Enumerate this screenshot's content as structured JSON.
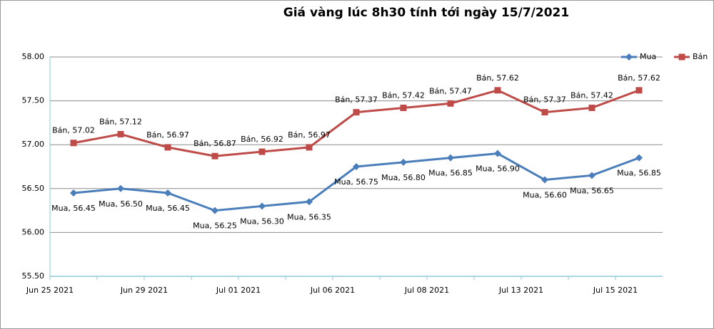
{
  "chart_data": {
    "type": "line",
    "title": "Giá vàng lúc 8h30 tính tới ngày 15/7/2021",
    "categories": [
      "Jun 25 2021",
      null,
      "Jun 29 2021",
      null,
      "Jul 01 2021",
      null,
      "Jul 06 2021",
      null,
      "Jul 08 2021",
      null,
      "Jul 13 2021",
      null,
      "Jul 15 2021"
    ],
    "series": [
      {
        "name": "Mua",
        "color": "#4a7ebb",
        "marker": "diamond",
        "values": [
          56.45,
          56.5,
          56.45,
          56.25,
          56.3,
          56.35,
          56.75,
          56.8,
          56.85,
          56.9,
          56.6,
          56.65,
          56.85
        ],
        "value_labels": [
          "Mua, 56.45",
          "Mua, 56.50",
          "Mua, 56.45",
          "Mua, 56.25",
          "Mua, 56.30",
          "Mua, 56.35",
          "Mua, 56.75",
          "Mua, 56.80",
          "Mua, 56.85",
          "Mua, 56.90",
          "Mua, 56.60",
          "Mua, 56.65",
          "Mua, 56.85"
        ]
      },
      {
        "name": "Bán",
        "color": "#be4b48",
        "marker": "square",
        "values": [
          57.02,
          57.12,
          56.97,
          56.87,
          56.92,
          56.97,
          57.37,
          57.42,
          57.47,
          57.62,
          57.37,
          57.42,
          57.62
        ],
        "value_labels": [
          "Bán, 57.02",
          "Bán, 57.12",
          "Bán, 56.97",
          "Bán, 56.87",
          "Bán, 56.92",
          "Bán, 56.97",
          "Bán, 57.37",
          "Bán, 57.42",
          "Bán, 57.47",
          "Bán, 57.62",
          "Bán, 57.37",
          "Bán, 57.42",
          "Bán, 57.62"
        ]
      }
    ],
    "ylim": [
      55.5,
      58
    ],
    "yticks": [
      {
        "value": 55.5,
        "label": "55.50"
      },
      {
        "value": 56,
        "label": "56.00"
      },
      {
        "value": 56.5,
        "label": "56.50"
      },
      {
        "value": 57,
        "label": "57.00"
      },
      {
        "value": 57.5,
        "label": "57.50"
      },
      {
        "value": 58,
        "label": "58.00"
      }
    ],
    "grid": true,
    "legend": "top-right"
  }
}
